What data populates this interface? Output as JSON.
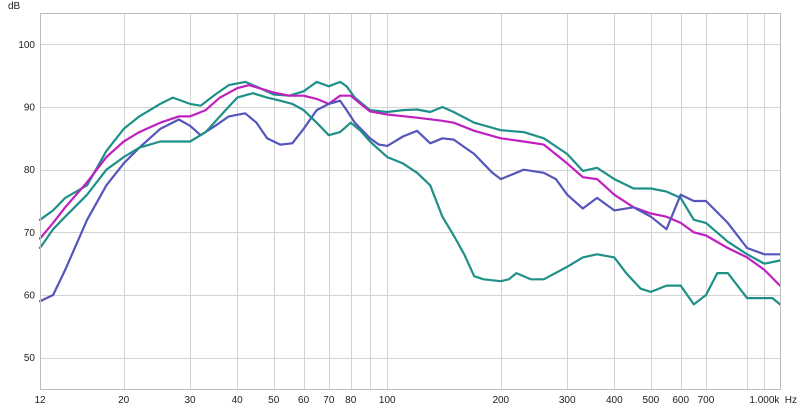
{
  "chart_data": {
    "type": "line",
    "title": "",
    "xlabel": "Hz",
    "ylabel": "dB",
    "x_scale": "log",
    "xlim": [
      12,
      1100
    ],
    "ylim": [
      45,
      105
    ],
    "grid": true,
    "x_ticks": [
      {
        "value": 12,
        "label": "12"
      },
      {
        "value": 20,
        "label": "20"
      },
      {
        "value": 30,
        "label": "30"
      },
      {
        "value": 40,
        "label": "40"
      },
      {
        "value": 50,
        "label": "50"
      },
      {
        "value": 60,
        "label": "60"
      },
      {
        "value": 70,
        "label": "70"
      },
      {
        "value": 80,
        "label": "80"
      },
      {
        "value": 100,
        "label": "100"
      },
      {
        "value": 200,
        "label": "200"
      },
      {
        "value": 300,
        "label": "300"
      },
      {
        "value": 400,
        "label": "400"
      },
      {
        "value": 500,
        "label": "500"
      },
      {
        "value": 600,
        "label": "600"
      },
      {
        "value": 700,
        "label": "700"
      },
      {
        "value": 1000,
        "label": "1.000k"
      }
    ],
    "x_minor_grid": [
      90,
      900
    ],
    "y_ticks": [
      50,
      60,
      70,
      80,
      90,
      100
    ],
    "series": [
      {
        "color": "#1e9088",
        "points": [
          [
            12,
            72
          ],
          [
            13,
            73.5
          ],
          [
            14,
            75.5
          ],
          [
            16,
            77.5
          ],
          [
            18,
            83
          ],
          [
            20,
            86.5
          ],
          [
            22,
            88.5
          ],
          [
            25,
            90.5
          ],
          [
            27,
            91.5
          ],
          [
            30,
            90.5
          ],
          [
            32,
            90.2
          ],
          [
            35,
            92
          ],
          [
            38,
            93.5
          ],
          [
            42,
            94
          ],
          [
            46,
            93
          ],
          [
            50,
            92
          ],
          [
            55,
            91.8
          ],
          [
            60,
            92.5
          ],
          [
            65,
            94
          ],
          [
            70,
            93.3
          ],
          [
            75,
            94
          ],
          [
            78,
            93.3
          ],
          [
            82,
            91.5
          ],
          [
            90,
            89.5
          ],
          [
            100,
            89.2
          ],
          [
            110,
            89.5
          ],
          [
            120,
            89.6
          ],
          [
            130,
            89.2
          ],
          [
            140,
            90
          ],
          [
            150,
            89.2
          ],
          [
            170,
            87.5
          ],
          [
            200,
            86.3
          ],
          [
            230,
            86
          ],
          [
            260,
            85
          ],
          [
            300,
            82.5
          ],
          [
            330,
            79.8
          ],
          [
            360,
            80.3
          ],
          [
            400,
            78.5
          ],
          [
            450,
            77
          ],
          [
            500,
            77
          ],
          [
            550,
            76.5
          ],
          [
            600,
            75.5
          ],
          [
            650,
            72
          ],
          [
            700,
            71.5
          ],
          [
            800,
            68.5
          ],
          [
            900,
            66.5
          ],
          [
            1000,
            65
          ],
          [
            1100,
            65.5
          ]
        ]
      },
      {
        "color": "#c020c0",
        "points": [
          [
            12,
            69
          ],
          [
            13,
            71.5
          ],
          [
            14,
            74
          ],
          [
            16,
            78
          ],
          [
            18,
            82
          ],
          [
            20,
            84.5
          ],
          [
            22,
            86
          ],
          [
            25,
            87.5
          ],
          [
            28,
            88.5
          ],
          [
            30,
            88.5
          ],
          [
            33,
            89.5
          ],
          [
            36,
            91.5
          ],
          [
            40,
            93
          ],
          [
            43,
            93.5
          ],
          [
            47,
            92.8
          ],
          [
            50,
            92.3
          ],
          [
            55,
            91.8
          ],
          [
            60,
            91.8
          ],
          [
            65,
            91.3
          ],
          [
            70,
            90.5
          ],
          [
            75,
            91.8
          ],
          [
            80,
            91.8
          ],
          [
            85,
            90.5
          ],
          [
            90,
            89.3
          ],
          [
            100,
            88.8
          ],
          [
            120,
            88.3
          ],
          [
            140,
            87.8
          ],
          [
            150,
            87.5
          ],
          [
            170,
            86.2
          ],
          [
            200,
            85
          ],
          [
            230,
            84.5
          ],
          [
            260,
            84
          ],
          [
            300,
            81
          ],
          [
            330,
            78.8
          ],
          [
            360,
            78.5
          ],
          [
            400,
            76
          ],
          [
            450,
            74
          ],
          [
            500,
            73
          ],
          [
            550,
            72.5
          ],
          [
            600,
            71.5
          ],
          [
            650,
            70
          ],
          [
            700,
            69.5
          ],
          [
            800,
            67.5
          ],
          [
            900,
            66
          ],
          [
            1000,
            64
          ],
          [
            1100,
            61.5
          ]
        ]
      },
      {
        "color": "#5555bb",
        "points": [
          [
            12,
            59
          ],
          [
            13,
            60
          ],
          [
            14,
            64
          ],
          [
            16,
            72
          ],
          [
            18,
            77.5
          ],
          [
            20,
            81
          ],
          [
            22,
            83.5
          ],
          [
            25,
            86.5
          ],
          [
            28,
            88
          ],
          [
            30,
            87
          ],
          [
            32,
            85.5
          ],
          [
            35,
            87
          ],
          [
            38,
            88.5
          ],
          [
            42,
            89
          ],
          [
            45,
            87.5
          ],
          [
            48,
            85
          ],
          [
            52,
            84
          ],
          [
            56,
            84.2
          ],
          [
            60,
            86.5
          ],
          [
            65,
            89.5
          ],
          [
            70,
            90.5
          ],
          [
            75,
            91
          ],
          [
            78,
            89.5
          ],
          [
            82,
            87.5
          ],
          [
            90,
            85
          ],
          [
            95,
            84
          ],
          [
            100,
            83.8
          ],
          [
            110,
            85.3
          ],
          [
            120,
            86.2
          ],
          [
            130,
            84.2
          ],
          [
            140,
            85
          ],
          [
            150,
            84.8
          ],
          [
            170,
            82.5
          ],
          [
            190,
            79.5
          ],
          [
            200,
            78.5
          ],
          [
            230,
            80
          ],
          [
            260,
            79.5
          ],
          [
            280,
            78.5
          ],
          [
            300,
            76
          ],
          [
            330,
            73.8
          ],
          [
            360,
            75.5
          ],
          [
            400,
            73.5
          ],
          [
            450,
            74
          ],
          [
            500,
            72.5
          ],
          [
            550,
            70.5
          ],
          [
            600,
            76
          ],
          [
            650,
            75
          ],
          [
            700,
            75
          ],
          [
            800,
            71.5
          ],
          [
            900,
            67.5
          ],
          [
            1000,
            66.5
          ],
          [
            1100,
            66.5
          ]
        ]
      },
      {
        "color": "#1e9088",
        "points": [
          [
            12,
            67.5
          ],
          [
            13,
            70.5
          ],
          [
            14,
            72.5
          ],
          [
            16,
            76
          ],
          [
            18,
            80
          ],
          [
            20,
            82
          ],
          [
            22,
            83.5
          ],
          [
            25,
            84.5
          ],
          [
            28,
            84.5
          ],
          [
            30,
            84.5
          ],
          [
            33,
            86
          ],
          [
            36,
            88.5
          ],
          [
            40,
            91.5
          ],
          [
            44,
            92.2
          ],
          [
            48,
            91.5
          ],
          [
            52,
            91
          ],
          [
            56,
            90.5
          ],
          [
            60,
            89.5
          ],
          [
            65,
            87.5
          ],
          [
            70,
            85.5
          ],
          [
            75,
            86
          ],
          [
            80,
            87.5
          ],
          [
            85,
            86.2
          ],
          [
            90,
            84.5
          ],
          [
            100,
            82
          ],
          [
            110,
            81
          ],
          [
            120,
            79.5
          ],
          [
            130,
            77.5
          ],
          [
            140,
            72.5
          ],
          [
            150,
            69.5
          ],
          [
            160,
            66.5
          ],
          [
            170,
            63
          ],
          [
            180,
            62.5
          ],
          [
            200,
            62.2
          ],
          [
            210,
            62.5
          ],
          [
            220,
            63.5
          ],
          [
            240,
            62.5
          ],
          [
            260,
            62.5
          ],
          [
            300,
            64.5
          ],
          [
            330,
            66
          ],
          [
            360,
            66.5
          ],
          [
            400,
            66
          ],
          [
            430,
            63.5
          ],
          [
            470,
            61
          ],
          [
            500,
            60.5
          ],
          [
            550,
            61.5
          ],
          [
            600,
            61.5
          ],
          [
            650,
            58.5
          ],
          [
            700,
            60
          ],
          [
            750,
            63.5
          ],
          [
            800,
            63.5
          ],
          [
            900,
            59.5
          ],
          [
            1000,
            59.5
          ],
          [
            1050,
            59.5
          ],
          [
            1100,
            58.5
          ]
        ]
      }
    ]
  }
}
